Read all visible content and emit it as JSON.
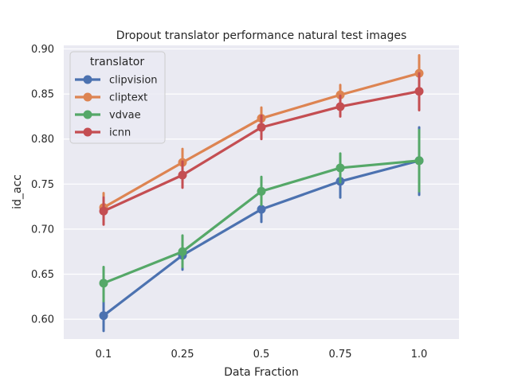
{
  "chart_data": {
    "type": "line",
    "title": "Dropout translator performance natural test images",
    "xlabel": "Data Fraction",
    "ylabel": "id_acc",
    "categories": [
      "0.1",
      "0.25",
      "0.5",
      "0.75",
      "1.0"
    ],
    "yticks": [
      "0.60",
      "0.65",
      "0.70",
      "0.75",
      "0.80",
      "0.85",
      "0.90"
    ],
    "ylim": [
      0.578,
      0.904
    ],
    "grid": true,
    "legend": {
      "title": "translator",
      "placement": "top-left"
    },
    "series": [
      {
        "name": "clipvision",
        "color": "#4c72b0",
        "values": [
          0.604,
          0.671,
          0.722,
          0.753,
          0.776
        ],
        "err_low": [
          0.587,
          0.655,
          0.708,
          0.735,
          0.738
        ],
        "err_high": [
          0.62,
          0.686,
          0.737,
          0.771,
          0.813
        ]
      },
      {
        "name": "cliptext",
        "color": "#dd8452",
        "values": [
          0.724,
          0.774,
          0.823,
          0.849,
          0.873
        ],
        "err_low": [
          0.71,
          0.76,
          0.81,
          0.838,
          0.853
        ],
        "err_high": [
          0.74,
          0.789,
          0.835,
          0.86,
          0.893
        ]
      },
      {
        "name": "vdvae",
        "color": "#55a868",
        "values": [
          0.64,
          0.675,
          0.742,
          0.768,
          0.776
        ],
        "err_low": [
          0.62,
          0.658,
          0.727,
          0.752,
          0.742
        ],
        "err_high": [
          0.658,
          0.693,
          0.758,
          0.784,
          0.81
        ]
      },
      {
        "name": "icnn",
        "color": "#c44e52",
        "values": [
          0.72,
          0.76,
          0.813,
          0.836,
          0.853
        ],
        "err_low": [
          0.705,
          0.746,
          0.8,
          0.825,
          0.832
        ],
        "err_high": [
          0.735,
          0.775,
          0.826,
          0.848,
          0.873
        ]
      }
    ]
  }
}
